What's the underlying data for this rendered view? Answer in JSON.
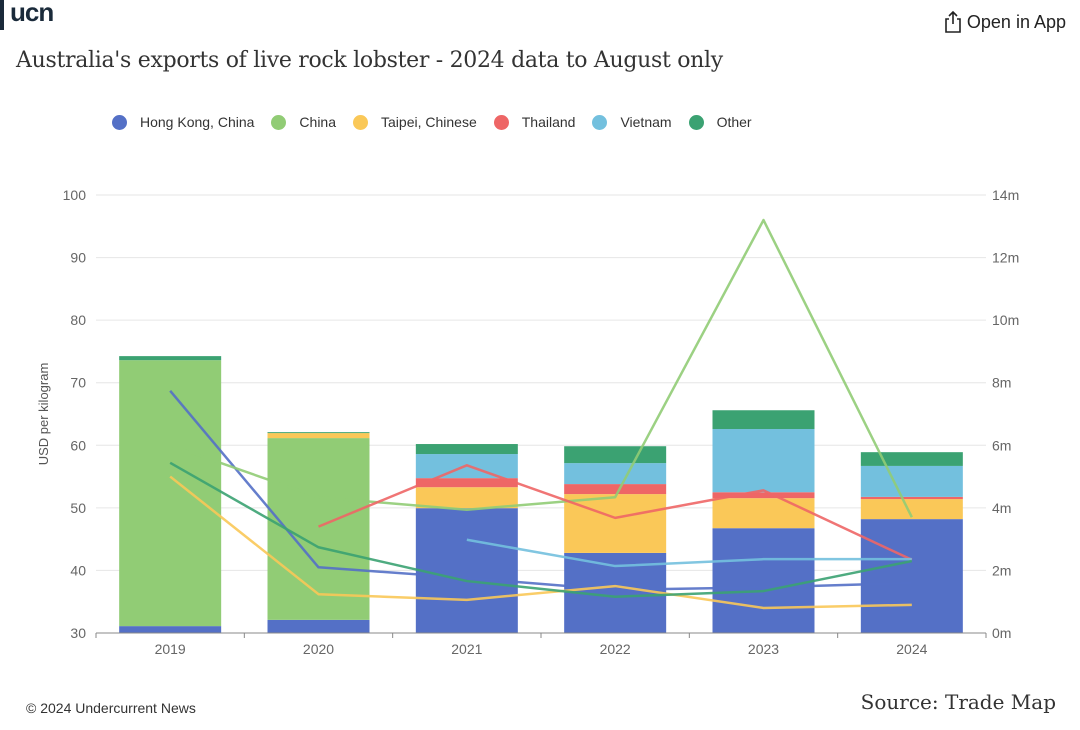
{
  "header": {
    "logo_text": "ucn",
    "open_app_label": "Open in App",
    "open_app_icon": "share-icon"
  },
  "footer": {
    "copyright": "© 2024 Undercurrent News",
    "source": "Source: Trade Map"
  },
  "chart_data": {
    "type": "bar",
    "title": "Australia's exports of live rock lobster - 2024 data to August only",
    "xlabel": "",
    "ylabel": "USD per kilogram",
    "categories": [
      "2019",
      "2020",
      "2021",
      "2022",
      "2023",
      "2024"
    ],
    "ylim_left": [
      30,
      100
    ],
    "yticks_left": [
      "30",
      "40",
      "50",
      "60",
      "70",
      "80",
      "90",
      "100"
    ],
    "ylim_right": [
      0,
      14
    ],
    "yticks_right": [
      "0m",
      "2m",
      "4m",
      "6m",
      "8m",
      "10m",
      "12m",
      "14m"
    ],
    "grid": true,
    "legend_position": "top",
    "series": [
      {
        "name": "Hong Kong, China",
        "color": "#5470c6",
        "bar_values_m": [
          0.22,
          0.42,
          3.99,
          2.56,
          3.35,
          3.64
        ],
        "line_values_usd_kg": [
          68.7,
          40.5,
          38.8,
          36.9,
          37.3,
          38.0
        ]
      },
      {
        "name": "China",
        "color": "#91cc75",
        "bar_values_m": [
          8.5,
          5.81,
          0,
          0,
          0,
          0
        ],
        "line_values_usd_kg": [
          60.0,
          51.7,
          49.7,
          51.7,
          96.0,
          48.5
        ]
      },
      {
        "name": "Taipei, Chinese",
        "color": "#fac858",
        "bar_values_m": [
          0,
          0.16,
          0.67,
          1.88,
          0.96,
          0.64
        ],
        "line_values_usd_kg": [
          55.0,
          36.2,
          35.3,
          37.5,
          34.0,
          34.5
        ]
      },
      {
        "name": "Thailand",
        "color": "#ee6666",
        "bar_values_m": [
          0,
          0,
          0.29,
          0.32,
          0.19,
          0.07
        ],
        "line_values_usd_kg": [
          null,
          47.0,
          56.8,
          48.4,
          52.8,
          41.7
        ]
      },
      {
        "name": "Vietnam",
        "color": "#73c0de",
        "bar_values_m": [
          0,
          0,
          0.77,
          0.67,
          2.02,
          0.99
        ],
        "line_values_usd_kg": [
          null,
          null,
          44.9,
          40.7,
          41.8,
          41.8
        ]
      },
      {
        "name": "Other",
        "color": "#3ba272",
        "bar_values_m": [
          0.13,
          0.03,
          0.32,
          0.54,
          0.6,
          0.44
        ],
        "line_values_usd_kg": [
          57.2,
          43.7,
          38.3,
          35.8,
          36.7,
          41.5
        ]
      }
    ]
  }
}
